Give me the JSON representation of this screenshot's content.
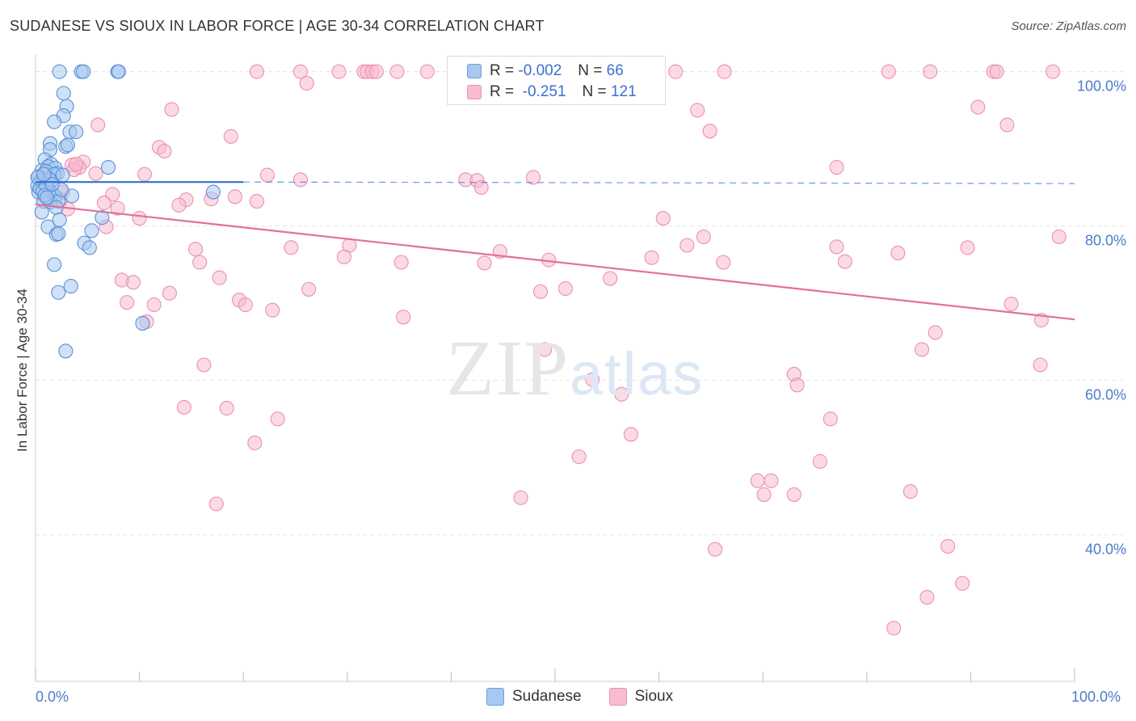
{
  "title": "SUDANESE VS SIOUX IN LABOR FORCE | AGE 30-34 CORRELATION CHART",
  "source": "Source: ZipAtlas.com",
  "watermark": {
    "zip": "ZIP",
    "atlas": "atlas"
  },
  "legend": {
    "rows": [
      {
        "r_label": "R =",
        "r_value": "-0.002",
        "n_label": "N =",
        "n_value": "66",
        "color": "#a8c8f0",
        "border": "#6c9de0"
      },
      {
        "r_label": "R =",
        "r_value": "-0.251",
        "n_label": "N =",
        "n_value": "121",
        "color": "#f7bcd0",
        "border": "#ec8fb0"
      }
    ]
  },
  "bottom_legend": [
    "Sudanese",
    "Sioux"
  ],
  "colors": {
    "sudanese_fill": "#a8c8f0",
    "sudanese_stroke": "#5b8fd8",
    "sudanese_line": "#2f6fcf",
    "sioux_fill": "#f7bcd0",
    "sioux_stroke": "#ea90b0",
    "sioux_line": "#e2709a",
    "tick_text": "#4a7cc9",
    "grid": "#e3e3e3"
  },
  "chart_data": {
    "type": "scatter",
    "title": "SUDANESE VS SIOUX IN LABOR FORCE | AGE 30-34 CORRELATION CHART",
    "xlabel": "",
    "ylabel": "In Labor Force | Age 30-34",
    "x_tick_labels": [
      "0.0%",
      "100.0%"
    ],
    "y_tick_labels": [
      "100.0%",
      "80.0%",
      "60.0%",
      "40.0%"
    ],
    "y_ticks": [
      100,
      80,
      60,
      40
    ],
    "xlim": [
      0,
      100
    ],
    "ylim": [
      21,
      103
    ],
    "grid": true,
    "legend_position": "top-center",
    "series": [
      {
        "name": "Sudanese",
        "r": -0.002,
        "n": 66,
        "trend": {
          "x": [
            0,
            20
          ],
          "y": [
            85.7,
            85.7
          ],
          "dashed_extension_to_x": 100
        },
        "points": [
          [
            2.3,
            100
          ],
          [
            4.4,
            100
          ],
          [
            4.6,
            100
          ],
          [
            7.9,
            100
          ],
          [
            8.0,
            100
          ],
          [
            2.7,
            97.2
          ],
          [
            3.0,
            95.5
          ],
          [
            2.7,
            94.3
          ],
          [
            1.8,
            93.5
          ],
          [
            3.3,
            92.2
          ],
          [
            3.9,
            92.2
          ],
          [
            1.4,
            90.7
          ],
          [
            1.4,
            89.9
          ],
          [
            2.9,
            90.3
          ],
          [
            3.1,
            90.5
          ],
          [
            0.9,
            88.6
          ],
          [
            1.5,
            88.0
          ],
          [
            1.2,
            87.7
          ],
          [
            7.0,
            87.6
          ],
          [
            1.9,
            87.5
          ],
          [
            0.6,
            87.2
          ],
          [
            1.0,
            87.1
          ],
          [
            2.1,
            86.8
          ],
          [
            1.8,
            86.7
          ],
          [
            0.3,
            86.4
          ],
          [
            0.5,
            85.9
          ],
          [
            1.5,
            85.9
          ],
          [
            0.5,
            85.6
          ],
          [
            0.2,
            85.2
          ],
          [
            1.1,
            85.1
          ],
          [
            0.6,
            84.9
          ],
          [
            0.3,
            84.4
          ],
          [
            1.5,
            84.3
          ],
          [
            3.5,
            83.9
          ],
          [
            17.1,
            84.4
          ],
          [
            1.7,
            84.0
          ],
          [
            1.9,
            83.8
          ],
          [
            0.8,
            83.2
          ],
          [
            1.4,
            83.1
          ],
          [
            2.2,
            83.2
          ],
          [
            2.0,
            82.4
          ],
          [
            0.6,
            81.8
          ],
          [
            2.3,
            80.8
          ],
          [
            6.4,
            81.1
          ],
          [
            1.2,
            79.9
          ],
          [
            5.4,
            79.4
          ],
          [
            2.0,
            78.9
          ],
          [
            2.2,
            79.0
          ],
          [
            4.7,
            77.8
          ],
          [
            5.2,
            77.2
          ],
          [
            1.8,
            75.0
          ],
          [
            3.4,
            72.2
          ],
          [
            2.2,
            71.4
          ],
          [
            10.3,
            67.4
          ],
          [
            2.9,
            63.8
          ],
          [
            0.4,
            84.9
          ],
          [
            0.7,
            84.5
          ],
          [
            1.0,
            85.3
          ],
          [
            1.3,
            86.1
          ],
          [
            0.9,
            84.0
          ],
          [
            2.5,
            84.7
          ],
          [
            1.6,
            85.4
          ],
          [
            0.2,
            86.3
          ],
          [
            0.8,
            86.7
          ],
          [
            2.6,
            86.6
          ],
          [
            1.1,
            83.7
          ]
        ]
      },
      {
        "name": "Sioux",
        "r": -0.251,
        "n": 121,
        "trend": {
          "x": [
            0,
            100
          ],
          "y": [
            82.8,
            67.9
          ]
        },
        "points": [
          [
            21.3,
            100
          ],
          [
            25.5,
            100
          ],
          [
            29.2,
            100
          ],
          [
            31.6,
            100
          ],
          [
            31.9,
            100
          ],
          [
            32.4,
            100
          ],
          [
            32.8,
            100
          ],
          [
            34.8,
            100
          ],
          [
            37.7,
            100
          ],
          [
            46.6,
            100
          ],
          [
            48.1,
            100
          ],
          [
            55.8,
            100
          ],
          [
            61.6,
            100
          ],
          [
            66.3,
            100
          ],
          [
            82.1,
            100
          ],
          [
            86.1,
            100
          ],
          [
            92.2,
            100
          ],
          [
            92.5,
            100
          ],
          [
            97.9,
            100
          ],
          [
            26.1,
            98.5
          ],
          [
            6.0,
            93.1
          ],
          [
            13.1,
            95.1
          ],
          [
            93.5,
            93.1
          ],
          [
            90.7,
            95.4
          ],
          [
            64.9,
            92.3
          ],
          [
            63.7,
            95.0
          ],
          [
            18.8,
            91.6
          ],
          [
            11.9,
            90.2
          ],
          [
            12.4,
            89.7
          ],
          [
            4.6,
            88.3
          ],
          [
            3.5,
            87.9
          ],
          [
            4.2,
            87.6
          ],
          [
            3.7,
            87.3
          ],
          [
            5.8,
            86.8
          ],
          [
            10.5,
            86.7
          ],
          [
            22.3,
            86.6
          ],
          [
            25.5,
            86.0
          ],
          [
            41.4,
            86.0
          ],
          [
            42.5,
            85.9
          ],
          [
            42.9,
            85.0
          ],
          [
            47.9,
            86.3
          ],
          [
            77.1,
            87.6
          ],
          [
            7.4,
            84.1
          ],
          [
            14.5,
            83.4
          ],
          [
            16.9,
            83.5
          ],
          [
            19.2,
            83.8
          ],
          [
            21.3,
            83.2
          ],
          [
            6.6,
            83.0
          ],
          [
            13.8,
            82.7
          ],
          [
            7.9,
            82.3
          ],
          [
            3.1,
            82.2
          ],
          [
            10.0,
            81.0
          ],
          [
            6.8,
            79.9
          ],
          [
            60.4,
            81.0
          ],
          [
            64.3,
            78.6
          ],
          [
            62.7,
            77.5
          ],
          [
            83.0,
            76.5
          ],
          [
            77.1,
            77.3
          ],
          [
            89.7,
            77.2
          ],
          [
            98.5,
            78.6
          ],
          [
            15.4,
            77.0
          ],
          [
            24.6,
            77.2
          ],
          [
            30.2,
            77.5
          ],
          [
            29.7,
            76.0
          ],
          [
            44.7,
            76.7
          ],
          [
            15.8,
            75.3
          ],
          [
            35.2,
            75.3
          ],
          [
            43.2,
            75.2
          ],
          [
            49.4,
            75.6
          ],
          [
            59.3,
            75.9
          ],
          [
            66.2,
            75.3
          ],
          [
            77.9,
            75.4
          ],
          [
            8.3,
            73.0
          ],
          [
            9.4,
            72.7
          ],
          [
            17.7,
            73.3
          ],
          [
            26.3,
            71.8
          ],
          [
            12.9,
            71.3
          ],
          [
            48.6,
            71.5
          ],
          [
            51.0,
            71.9
          ],
          [
            55.3,
            73.2
          ],
          [
            8.8,
            70.1
          ],
          [
            11.4,
            69.8
          ],
          [
            19.6,
            70.4
          ],
          [
            20.2,
            69.8
          ],
          [
            22.8,
            69.1
          ],
          [
            35.4,
            68.2
          ],
          [
            93.9,
            69.9
          ],
          [
            96.8,
            67.8
          ],
          [
            10.7,
            67.6
          ],
          [
            49.0,
            64.0
          ],
          [
            85.3,
            64.0
          ],
          [
            86.6,
            66.2
          ],
          [
            96.7,
            62.0
          ],
          [
            16.2,
            62.0
          ],
          [
            53.6,
            60.1
          ],
          [
            73.0,
            60.8
          ],
          [
            73.3,
            59.4
          ],
          [
            56.4,
            58.2
          ],
          [
            14.3,
            56.5
          ],
          [
            18.4,
            56.4
          ],
          [
            23.3,
            55.0
          ],
          [
            57.3,
            53.0
          ],
          [
            21.1,
            51.9
          ],
          [
            76.5,
            55.0
          ],
          [
            52.3,
            50.1
          ],
          [
            75.5,
            49.5
          ],
          [
            69.5,
            47.0
          ],
          [
            70.1,
            45.2
          ],
          [
            70.8,
            47.0
          ],
          [
            73.0,
            45.2
          ],
          [
            84.2,
            45.6
          ],
          [
            46.7,
            44.8
          ],
          [
            17.4,
            44.0
          ],
          [
            65.4,
            38.1
          ],
          [
            87.8,
            38.5
          ],
          [
            89.2,
            33.7
          ],
          [
            85.8,
            31.9
          ],
          [
            82.6,
            27.9
          ],
          [
            3.9,
            88.0
          ],
          [
            2.6,
            84.4
          ],
          [
            1.3,
            84.6
          ],
          [
            2.4,
            83.4
          ],
          [
            0.8,
            83.9
          ]
        ]
      }
    ]
  }
}
